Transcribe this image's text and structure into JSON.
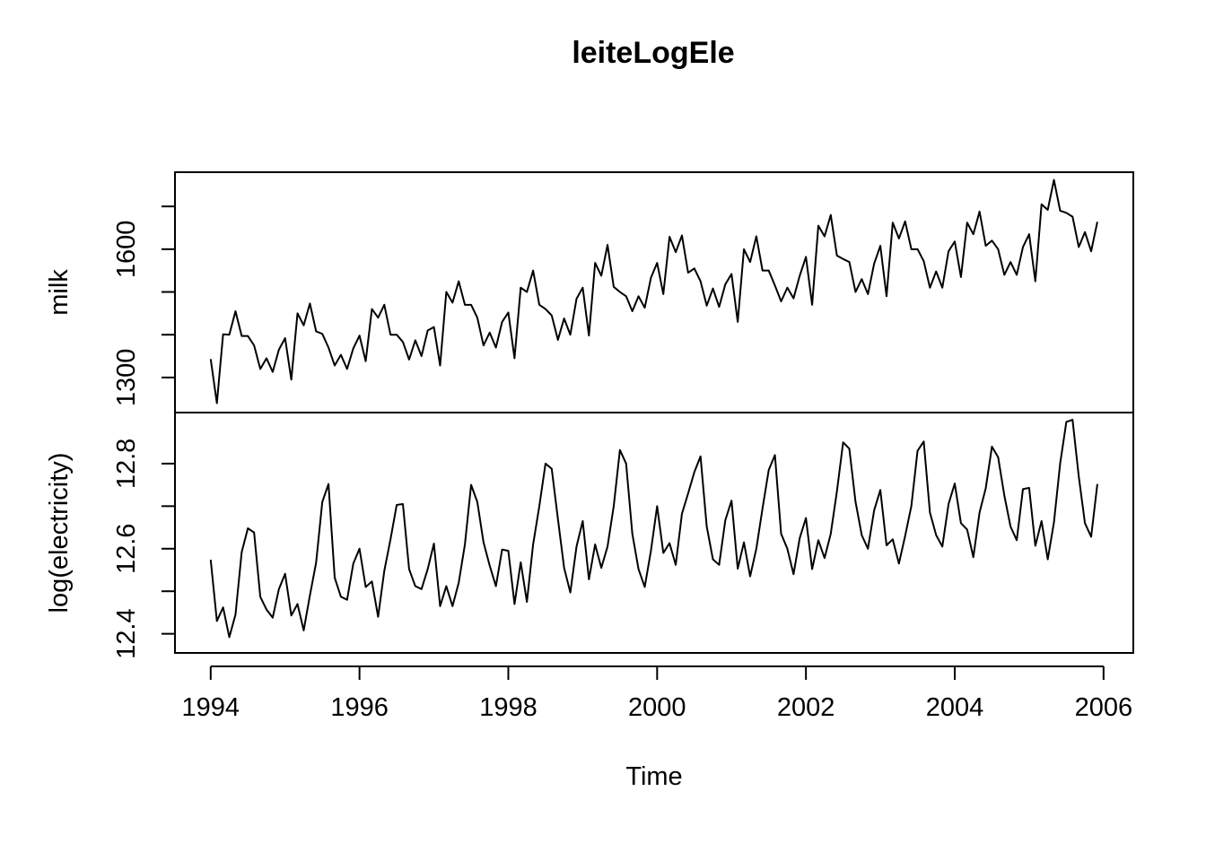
{
  "chart_data": {
    "type": "line",
    "title": "leiteLogEle",
    "xlabel": "Time",
    "x_ticks": [
      "1994",
      "1996",
      "1998",
      "2000",
      "2002",
      "2004",
      "2006"
    ],
    "x_tick_values": [
      1994,
      1996,
      1998,
      2000,
      2002,
      2004,
      2006
    ],
    "xlim": [
      1993.52,
      2006.4
    ],
    "start": 1994,
    "frequency": 12,
    "panels": [
      {
        "ylabel": "milk",
        "ylim": [
          1218,
          1780
        ],
        "y_ticks": [
          "1300",
          "1600"
        ],
        "y_tick_values": [
          1300,
          1400,
          1500,
          1600,
          1700
        ],
        "values": [
          1343,
          1240,
          1401,
          1400,
          1455,
          1397,
          1397,
          1375,
          1320,
          1345,
          1313,
          1365,
          1392,
          1295,
          1450,
          1422,
          1473,
          1408,
          1402,
          1370,
          1328,
          1353,
          1320,
          1368,
          1398,
          1338,
          1460,
          1440,
          1470,
          1400,
          1400,
          1383,
          1342,
          1387,
          1350,
          1410,
          1418,
          1328,
          1500,
          1475,
          1525,
          1470,
          1470,
          1440,
          1375,
          1405,
          1370,
          1430,
          1452,
          1345,
          1510,
          1500,
          1550,
          1470,
          1460,
          1445,
          1388,
          1438,
          1400,
          1484,
          1510,
          1398,
          1568,
          1538,
          1610,
          1512,
          1500,
          1490,
          1455,
          1490,
          1463,
          1533,
          1568,
          1495,
          1629,
          1593,
          1632,
          1545,
          1555,
          1525,
          1468,
          1508,
          1465,
          1518,
          1542,
          1430,
          1600,
          1570,
          1630,
          1550,
          1550,
          1515,
          1478,
          1510,
          1485,
          1538,
          1582,
          1470,
          1655,
          1630,
          1680,
          1585,
          1577,
          1570,
          1500,
          1530,
          1495,
          1566,
          1608,
          1490,
          1662,
          1625,
          1665,
          1600,
          1600,
          1572,
          1510,
          1548,
          1510,
          1595,
          1618,
          1535,
          1662,
          1635,
          1688,
          1608,
          1620,
          1600,
          1540,
          1570,
          1540,
          1605,
          1635,
          1525,
          1705,
          1692,
          1762,
          1690,
          1685,
          1676,
          1605,
          1640,
          1595,
          1664
        ]
      },
      {
        "ylabel": "log(electricity)",
        "ylim": [
          12.355,
          12.92
        ],
        "y_ticks": [
          "12.4",
          "12.6",
          "12.8"
        ],
        "y_tick_values": [
          12.4,
          12.5,
          12.6,
          12.7,
          12.8
        ],
        "values": [
          12.574,
          12.43,
          12.462,
          12.392,
          12.445,
          12.592,
          12.648,
          12.638,
          12.487,
          12.457,
          12.438,
          12.505,
          12.541,
          12.443,
          12.47,
          12.408,
          12.49,
          12.567,
          12.71,
          12.752,
          12.532,
          12.487,
          12.48,
          12.565,
          12.6,
          12.51,
          12.523,
          12.44,
          12.548,
          12.622,
          12.703,
          12.705,
          12.552,
          12.512,
          12.505,
          12.552,
          12.612,
          12.465,
          12.512,
          12.465,
          12.52,
          12.61,
          12.75,
          12.71,
          12.615,
          12.56,
          12.512,
          12.598,
          12.595,
          12.47,
          12.568,
          12.475,
          12.61,
          12.7,
          12.8,
          12.788,
          12.67,
          12.555,
          12.497,
          12.605,
          12.665,
          12.528,
          12.61,
          12.555,
          12.605,
          12.7,
          12.832,
          12.8,
          12.635,
          12.552,
          12.51,
          12.595,
          12.7,
          12.59,
          12.613,
          12.562,
          12.682,
          12.73,
          12.78,
          12.817,
          12.652,
          12.575,
          12.562,
          12.667,
          12.713,
          12.553,
          12.615,
          12.535,
          12.6,
          12.695,
          12.785,
          12.82,
          12.635,
          12.6,
          12.54,
          12.625,
          12.672,
          12.552,
          12.62,
          12.578,
          12.635,
          12.735,
          12.85,
          12.835,
          12.71,
          12.632,
          12.6,
          12.69,
          12.738,
          12.608,
          12.622,
          12.565,
          12.63,
          12.7,
          12.83,
          12.852,
          12.685,
          12.632,
          12.605,
          12.705,
          12.753,
          12.66,
          12.645,
          12.58,
          12.685,
          12.742,
          12.84,
          12.815,
          12.725,
          12.652,
          12.62,
          12.74,
          12.743,
          12.607,
          12.665,
          12.575,
          12.662,
          12.8,
          12.898,
          12.903,
          12.77,
          12.66,
          12.628,
          12.752
        ]
      }
    ]
  }
}
